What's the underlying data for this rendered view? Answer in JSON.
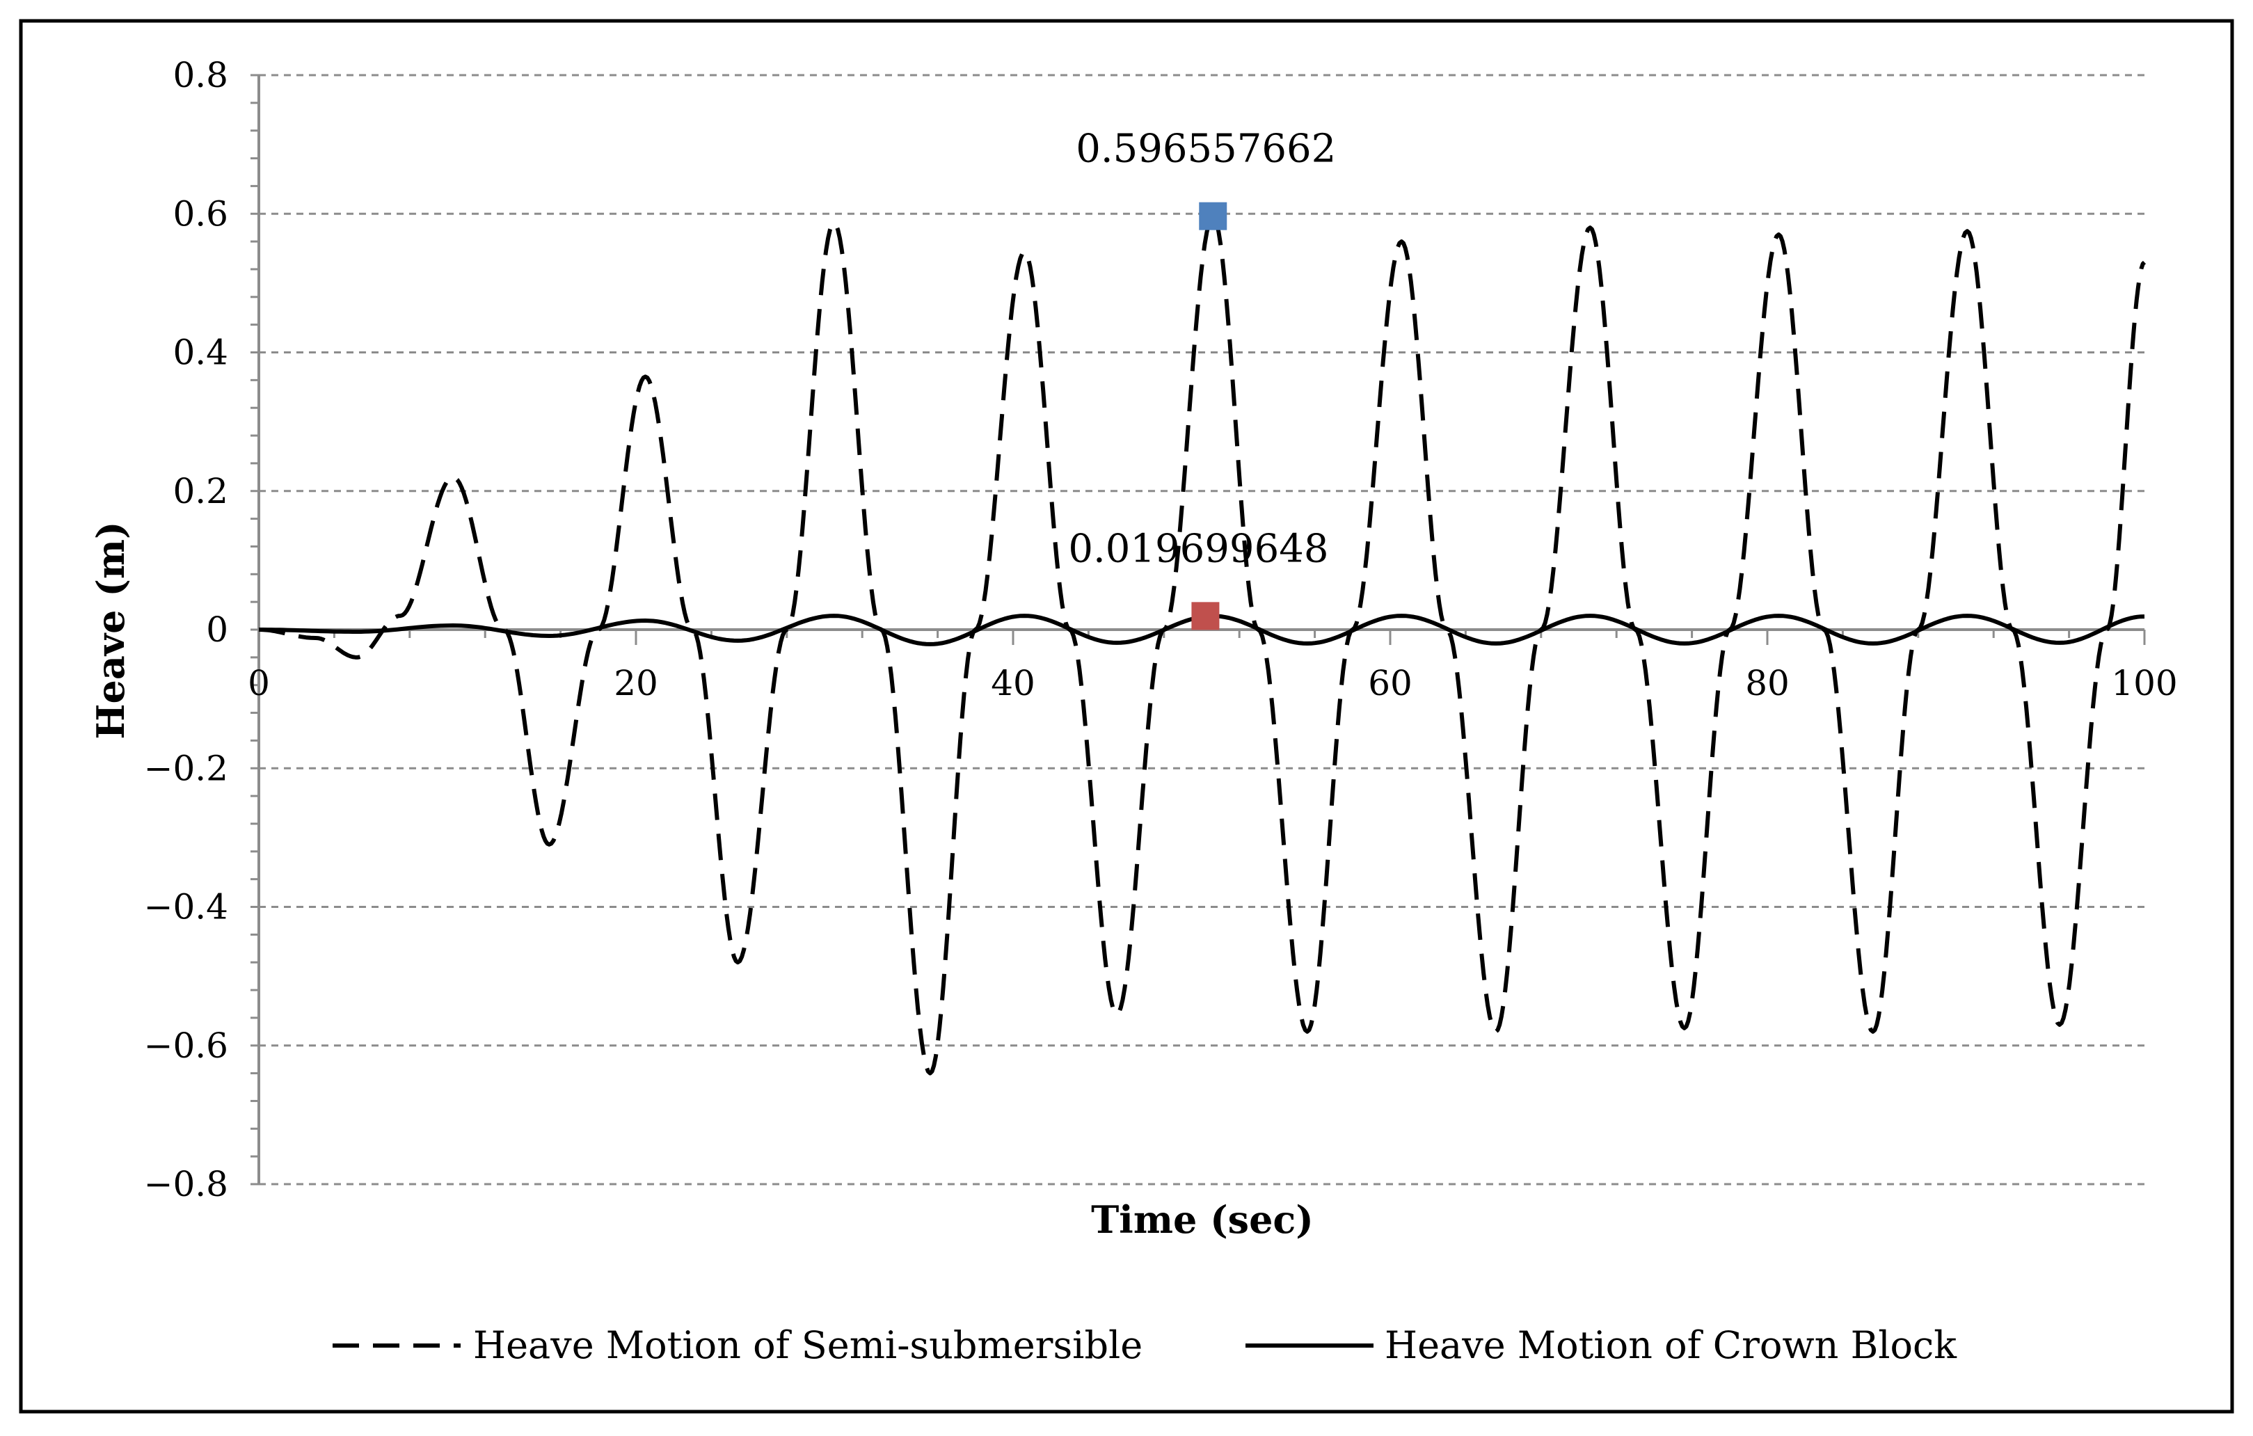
{
  "chart_data": {
    "type": "line",
    "title": "",
    "xlabel": "Time (sec)",
    "ylabel": "Heave (m)",
    "xlim": [
      0,
      100
    ],
    "ylim": [
      -0.8,
      0.8
    ],
    "x_ticks": [
      0,
      20,
      40,
      60,
      80,
      100
    ],
    "x_tick_labels": [
      "0",
      "20",
      "40",
      "60",
      "80",
      "100"
    ],
    "y_ticks": [
      -0.8,
      -0.6,
      -0.4,
      -0.2,
      0,
      0.2,
      0.4,
      0.6,
      0.8
    ],
    "y_tick_labels": [
      "−0.8",
      "−0.6",
      "−0.4",
      "−0.2",
      "0",
      "0.2",
      "0.4",
      "0.6",
      "0.8"
    ],
    "grid": true,
    "legend_position": "bottom",
    "series": [
      {
        "name": "Heave Motion of Semi-submersible",
        "style": "dashed",
        "color": "#000000",
        "x": [
          0,
          3.0,
          5.2,
          7.5,
          10.3,
          13.0,
          15.4,
          18.0,
          20.5,
          23.0,
          25.4,
          28.0,
          30.5,
          33.0,
          35.6,
          38.0,
          40.6,
          43.0,
          45.5,
          48.0,
          50.6,
          53.0,
          55.6,
          58.0,
          60.6,
          63.0,
          65.6,
          68.0,
          70.6,
          73.0,
          75.6,
          78.0,
          80.6,
          83.0,
          85.6,
          88.0,
          90.6,
          93.0,
          95.5,
          98.0,
          100
        ],
        "y": [
          0,
          -0.012,
          -0.04,
          0.02,
          0.22,
          0.0,
          -0.31,
          0.0,
          0.365,
          0.0,
          -0.48,
          0.0,
          0.587,
          0.0,
          -0.64,
          0.0,
          0.545,
          0.0,
          -0.555,
          0.0,
          0.5966,
          0.0,
          -0.58,
          0.0,
          0.56,
          0.0,
          -0.58,
          0.0,
          0.58,
          0.0,
          -0.575,
          0.0,
          0.57,
          0.0,
          -0.58,
          0.0,
          0.575,
          0.0,
          -0.57,
          0.0,
          0.53
        ]
      },
      {
        "name": "Heave Motion of Crown Block",
        "style": "solid",
        "color": "#000000",
        "x": [
          0,
          5.2,
          10.3,
          15.4,
          20.5,
          25.4,
          30.5,
          35.6,
          40.6,
          45.5,
          50.6,
          55.6,
          60.6,
          65.6,
          70.6,
          75.6,
          80.6,
          85.6,
          90.6,
          95.5,
          100
        ],
        "y": [
          0,
          -0.003,
          0.006,
          -0.009,
          0.013,
          -0.016,
          0.02,
          -0.021,
          0.02,
          -0.019,
          0.0197,
          -0.02,
          0.02,
          -0.02,
          0.02,
          -0.02,
          0.02,
          -0.02,
          0.02,
          -0.019,
          0.019
        ]
      }
    ],
    "annotations": [
      {
        "text": "0.596557662",
        "x": 50.6,
        "y": 0.596557662,
        "marker_color": "#4f81bd"
      },
      {
        "text": "0.019699648",
        "x": 50.2,
        "y": 0.019699648,
        "marker_color": "#c0504d"
      }
    ]
  }
}
